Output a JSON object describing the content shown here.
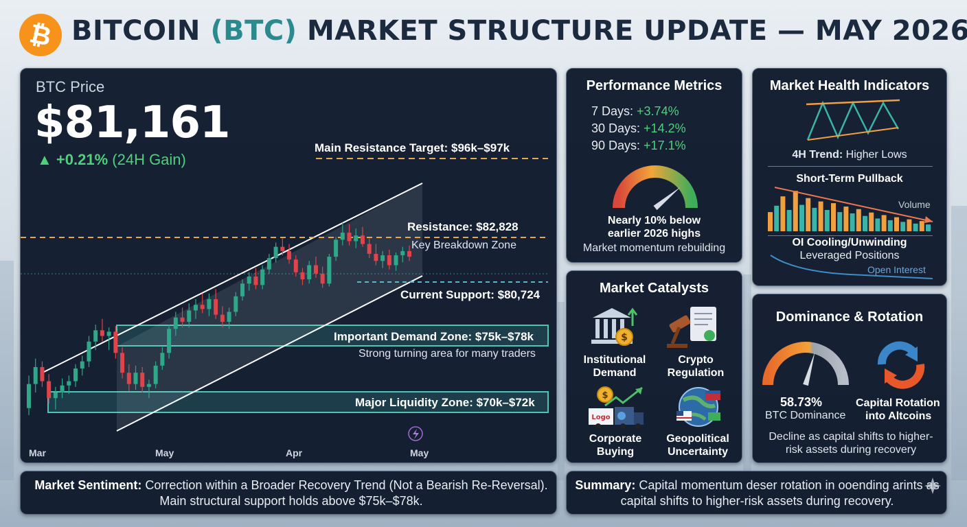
{
  "header": {
    "logo_glyph": "₿",
    "title_pre": "BITCOIN ",
    "title_accent": "(BTC)",
    "title_post": " MARKET STRUCTURE UPDATE — MAY 2026"
  },
  "price_panel": {
    "label": "BTC Price",
    "price": "$81,161",
    "change_arrow": "▲",
    "change": "+0.21%",
    "change_note": "(24H Gain)"
  },
  "chart_data": {
    "type": "candlestick",
    "x_tick_labels": [
      "Mar",
      "May",
      "Apr",
      "May"
    ],
    "annotations": {
      "main_resistance": "Main Resistance Target: $96k–$97k",
      "resistance": "Resistance: $82,828",
      "breakdown": "Key Breakdown Zone",
      "support": "Current Support: $80,724",
      "demand_zone": "Important Demand Zone: $75k–$78k",
      "demand_note": "Strong turning area for many traders",
      "liquidity_zone": "Major Liquidity Zone: $70k–$72k"
    },
    "candles": [
      [
        70.5,
        72.8,
        70.0,
        72.2
      ],
      [
        72.2,
        74.0,
        71.6,
        73.4
      ],
      [
        73.4,
        73.8,
        72.0,
        72.4
      ],
      [
        72.4,
        72.9,
        70.8,
        71.2
      ],
      [
        71.2,
        72.0,
        70.4,
        71.6
      ],
      [
        71.6,
        72.6,
        71.2,
        72.1
      ],
      [
        72.1,
        72.8,
        71.5,
        72.4
      ],
      [
        72.4,
        73.6,
        72.0,
        73.3
      ],
      [
        73.3,
        74.2,
        72.8,
        73.8
      ],
      [
        73.8,
        75.6,
        73.4,
        75.2
      ],
      [
        75.2,
        76.4,
        74.6,
        76.0
      ],
      [
        76.0,
        76.8,
        75.2,
        75.6
      ],
      [
        75.6,
        76.2,
        74.6,
        75.9
      ],
      [
        75.9,
        76.3,
        74.0,
        74.4
      ],
      [
        74.4,
        74.8,
        72.6,
        73.0
      ],
      [
        73.0,
        73.6,
        71.7,
        72.2
      ],
      [
        72.2,
        73.5,
        71.8,
        73.0
      ],
      [
        73.0,
        73.4,
        71.6,
        72.0
      ],
      [
        72.0,
        72.5,
        71.2,
        72.2
      ],
      [
        72.2,
        73.8,
        71.9,
        73.5
      ],
      [
        73.5,
        74.8,
        73.2,
        74.4
      ],
      [
        74.4,
        76.4,
        74.0,
        76.1
      ],
      [
        76.1,
        77.3,
        75.6,
        76.9
      ],
      [
        76.9,
        77.6,
        76.2,
        76.6
      ],
      [
        76.6,
        77.9,
        76.2,
        77.4
      ],
      [
        77.4,
        78.2,
        76.8,
        77.8
      ],
      [
        77.8,
        78.6,
        77.2,
        77.5
      ],
      [
        77.5,
        78.6,
        77.0,
        78.2
      ],
      [
        78.2,
        78.9,
        76.8,
        77.1
      ],
      [
        77.1,
        77.7,
        76.2,
        76.6
      ],
      [
        76.6,
        77.6,
        76.1,
        77.3
      ],
      [
        77.3,
        78.7,
        77.0,
        78.4
      ],
      [
        78.4,
        79.6,
        78.1,
        79.3
      ],
      [
        79.3,
        80.1,
        78.8,
        79.8
      ],
      [
        79.8,
        80.4,
        78.9,
        79.2
      ],
      [
        79.2,
        80.6,
        78.9,
        80.3
      ],
      [
        80.3,
        81.4,
        80.0,
        81.1
      ],
      [
        81.1,
        82.2,
        80.8,
        81.9
      ],
      [
        81.9,
        82.5,
        81.3,
        81.6
      ],
      [
        81.6,
        82.1,
        80.7,
        81.0
      ],
      [
        81.0,
        81.3,
        79.8,
        80.1
      ],
      [
        80.1,
        80.4,
        79.2,
        79.6
      ],
      [
        79.6,
        80.9,
        79.3,
        80.6
      ],
      [
        80.6,
        81.2,
        79.7,
        80.0
      ],
      [
        80.0,
        80.5,
        79.0,
        79.3
      ],
      [
        79.3,
        81.4,
        79.1,
        81.2
      ],
      [
        81.2,
        82.6,
        80.9,
        82.4
      ],
      [
        82.4,
        83.6,
        82.0,
        82.9
      ],
      [
        82.9,
        83.5,
        82.0,
        82.3
      ],
      [
        82.3,
        83.2,
        81.8,
        82.7
      ],
      [
        82.7,
        83.3,
        81.9,
        82.1
      ],
      [
        82.1,
        82.5,
        81.1,
        81.4
      ],
      [
        81.4,
        82.1,
        80.6,
        80.9
      ],
      [
        80.9,
        81.6,
        80.4,
        81.3
      ],
      [
        81.3,
        81.7,
        80.3,
        80.6
      ],
      [
        80.6,
        81.5,
        80.2,
        81.3
      ],
      [
        81.3,
        81.9,
        80.8,
        81.6
      ],
      [
        81.6,
        82.0,
        80.9,
        81.2
      ]
    ]
  },
  "performance": {
    "title": "Performance Metrics",
    "rows": [
      {
        "label": "7 Days: ",
        "value": "+3.74%"
      },
      {
        "label": "30 Days: ",
        "value": "+14.2%"
      },
      {
        "label": "90 Days: ",
        "value": "+17.1%"
      }
    ],
    "gauge_level": 0.78,
    "note_line1": "Nearly 10% below",
    "note_line2": "earlier 2026 highs",
    "note_line3": "Market momentum rebuilding"
  },
  "health": {
    "title": "Market Health Indicators",
    "trend_bold": "4H Trend:",
    "trend_rest": " Higher Lows",
    "pullback": "Short-Term Pullback",
    "volume": "Volume",
    "volume_bars": [
      0.45,
      0.6,
      0.82,
      0.5,
      0.95,
      0.62,
      0.78,
      0.55,
      0.7,
      0.5,
      0.66,
      0.45,
      0.58,
      0.42,
      0.52,
      0.36,
      0.44,
      0.3,
      0.38,
      0.26,
      0.33,
      0.22,
      0.28,
      0.18,
      0.24,
      0.16
    ],
    "oi_line1": "OI Cooling/Unwinding",
    "oi_line2": "Leveraged Positions",
    "open_interest": "Open Interest"
  },
  "catalysts": {
    "title": "Market Catalysts",
    "items": [
      {
        "line1": "Institutional",
        "line2": "Demand",
        "icon": "bank-icon"
      },
      {
        "line1": "Crypto",
        "line2": "Regulation",
        "icon": "gavel-icon"
      },
      {
        "line1": "Corporate",
        "line2": "Buying",
        "icon": "corporate-icon"
      },
      {
        "line1": "Geopolitical",
        "line2": "Uncertainty",
        "icon": "globe-icon"
      }
    ],
    "logo_text": "Logo"
  },
  "dominance": {
    "title": "Dominance & Rotation",
    "value": "58.73%",
    "value_label": "BTC Dominance",
    "gauge_level": 0.5873,
    "rotation_line1": "Capital Rotation",
    "rotation_line2": "into Altcoins",
    "note": "Decline as capital shifts to higher-risk assets during recovery"
  },
  "sentiment": {
    "bold": "Market Sentiment:",
    "text": " Correction within a Broader Recovery Trend (Not a Bearish Re-Reversal). Main structural support holds above $75k–$78k."
  },
  "summary": {
    "bold": "Summary:",
    "text": " Capital momentum deser rotation in ooending arints as capital shifts to higher-risk assets during recovery."
  },
  "colors": {
    "up": "#2fa88a",
    "down": "#e0434a",
    "accent": "#f7931a",
    "resistance": "#e6a84a",
    "support": "#5ab8c8"
  }
}
